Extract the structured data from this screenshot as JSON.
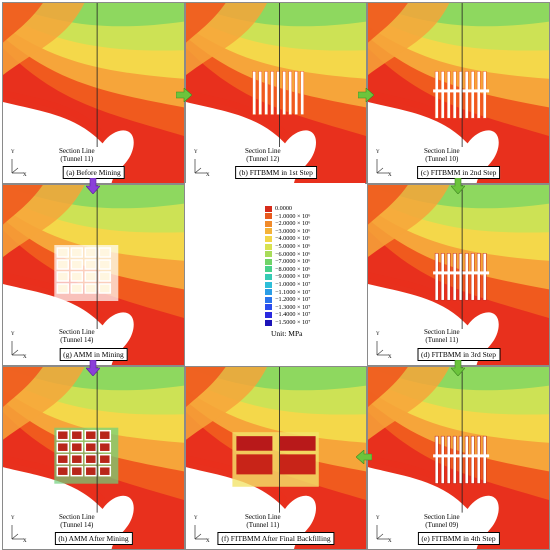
{
  "colors": {
    "red": "#e8301d",
    "orange_red": "#f05a1e",
    "orange": "#f6a53a",
    "yellow": "#f4d84a",
    "yellow_green": "#cde255",
    "green": "#8ed85f",
    "cavity": "#ffffff",
    "arrow": "#6cc43c",
    "arrow_purple": "#8b3fd9",
    "rib_fill": "#b61d10",
    "section_line": "#222222"
  },
  "panels": [
    {
      "id": "a",
      "caption": "(a) Before Mining",
      "section_label": [
        "Section Line",
        "(Tunnel 11)"
      ]
    },
    {
      "id": "b",
      "caption": "(b) FITBMM in 1st Step",
      "section_label": [
        "Section Line",
        "(Tunnel 12)"
      ]
    },
    {
      "id": "c",
      "caption": "(c) FITBMM in 2nd Step",
      "section_label": [
        "Section Line",
        "(Tunnel 10)"
      ]
    },
    {
      "id": "d",
      "caption": "(d) FITBMM in 3rd Step",
      "section_label": [
        "Section Line",
        "(Tunnel 11)"
      ]
    },
    {
      "id": "e",
      "caption": "(e) FITBMM in 4th Step",
      "section_label": [
        "Section Line",
        "(Tunnel 09)"
      ]
    },
    {
      "id": "f",
      "caption": "(f) FITBMM After Final Backfilling",
      "section_label": [
        "Section Line",
        "(Tunnel 11)"
      ]
    },
    {
      "id": "g",
      "caption": "(g) AMM in Mining",
      "section_label": [
        "Section Line",
        "(Tunnel 14)"
      ]
    },
    {
      "id": "h",
      "caption": "(h) AMM After Mining",
      "section_label": [
        "Section Line",
        "(Tunnel 14)"
      ]
    }
  ],
  "axes": {
    "x": "X",
    "y": "Y"
  },
  "legend": {
    "entries": [
      {
        "label": "0.0000",
        "color": "#d62b1a"
      },
      {
        "label": "−1.0000 × 10⁶",
        "color": "#e85a1d"
      },
      {
        "label": "−2.0000 × 10⁶",
        "color": "#f08a2a"
      },
      {
        "label": "−3.0000 × 10⁶",
        "color": "#f4b238"
      },
      {
        "label": "−4.0000 × 10⁶",
        "color": "#f2d648"
      },
      {
        "label": "−5.0000 × 10⁶",
        "color": "#d8e250"
      },
      {
        "label": "−6.0000 × 10⁶",
        "color": "#a8dc5a"
      },
      {
        "label": "−7.0000 × 10⁶",
        "color": "#70d468"
      },
      {
        "label": "−8.0000 × 10⁶",
        "color": "#48d08a"
      },
      {
        "label": "−9.0000 × 10⁶",
        "color": "#36cbb4"
      },
      {
        "label": "−1.0000 × 10⁷",
        "color": "#2ebed8"
      },
      {
        "label": "−1.1000 × 10⁷",
        "color": "#2b9de6"
      },
      {
        "label": "−1.2000 × 10⁷",
        "color": "#2a74ec"
      },
      {
        "label": "−1.3000 × 10⁷",
        "color": "#2a4cee"
      },
      {
        "label": "−1.4000 × 10⁷",
        "color": "#2a2ae0"
      },
      {
        "label": "−1.5000 × 10⁷",
        "color": "#1c14b8"
      }
    ],
    "unit": "Unit: MPa"
  }
}
